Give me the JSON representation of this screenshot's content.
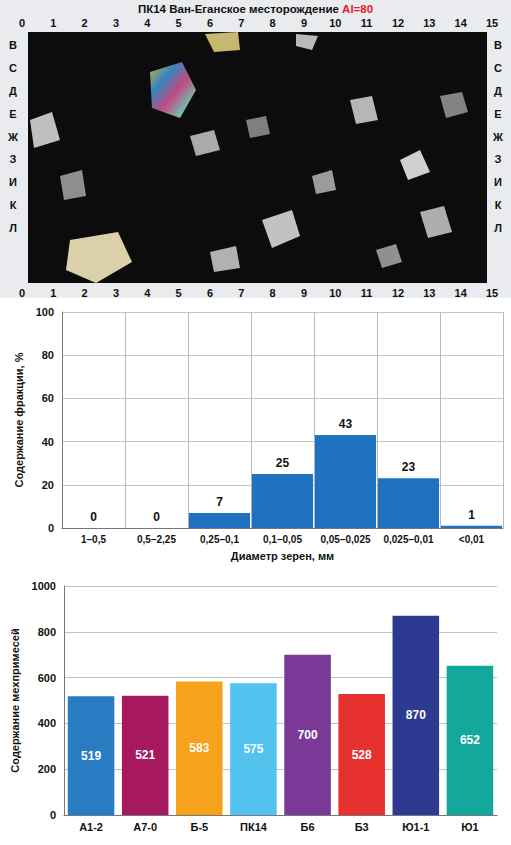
{
  "image_panel": {
    "title": "ПК14 Ван-Еганское месторождение",
    "index": "Al=80",
    "columns": [
      0,
      1,
      2,
      3,
      4,
      5,
      6,
      7,
      8,
      9,
      10,
      11,
      12,
      13,
      14,
      15
    ],
    "rows": [
      "В",
      "С",
      "Д",
      "Е",
      "Ж",
      "З",
      "И",
      "К",
      "Л"
    ]
  },
  "chart_data": [
    {
      "type": "bar",
      "y_label": "Содержание фракции, %",
      "x_label": "Диаметр зерен, мм",
      "categories": [
        "1–0,5",
        "0,5–2,25",
        "0,25–0,1",
        "0,1–0,05",
        "0,05–0,025",
        "0,025–0,01",
        "<0,01"
      ],
      "values": [
        0,
        0,
        7,
        25,
        43,
        23,
        1
      ],
      "color": "#1f72bf",
      "ylim": [
        0,
        100
      ],
      "yticks": [
        0,
        20,
        40,
        60,
        80,
        100
      ],
      "grid": true,
      "data_labels": true
    },
    {
      "type": "bar",
      "y_label": "Содержание мехпримесей",
      "categories": [
        "А1-2",
        "А7-0",
        "Б-5",
        "ПК14",
        "Б6",
        "Б3",
        "Ю1-1",
        "Ю1"
      ],
      "values": [
        519,
        521,
        583,
        575,
        700,
        528,
        870,
        652
      ],
      "colors": [
        "#2a7cc2",
        "#a6195e",
        "#f7a21b",
        "#52c3ee",
        "#7a3996",
        "#e7312f",
        "#2c3a91",
        "#14a79c"
      ],
      "ylim": [
        0,
        1000
      ],
      "yticks": [
        0,
        200,
        400,
        600,
        800,
        1000
      ],
      "grid": "y",
      "data_labels": true
    }
  ]
}
